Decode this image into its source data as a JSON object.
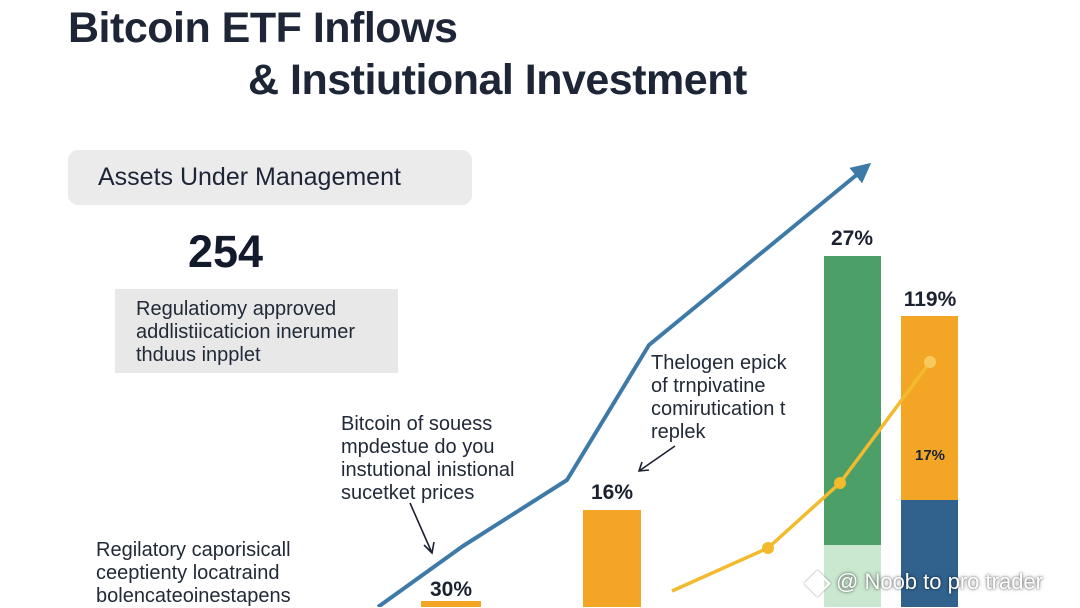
{
  "title_line1": "Bitcoin ETF Inflows",
  "title_line2": "& Instiutional Investment",
  "aum": {
    "label": "Assets Under Management",
    "value": "254"
  },
  "notes": {
    "regulatory_box": "Regulatiomy approved\naddlistiicaticion inerumer\nthduus inpplet",
    "bitcoin_note": "Bitcoin of souess\nmpdestue do you\ninstutional inistional\nsucetket prices",
    "trend_note": "Thelogen epick\nof trnpivatine\ncomirutication t\nreplek",
    "bottom_note": "Regilatory caporisicall\nceeptienty locatraind\nbolencateoinestapens"
  },
  "colors": {
    "trend_line": "#3d7aa8",
    "orange_bar": "#f3a626",
    "green_bar": "#4d9f68",
    "light_green": "#c9e8cf",
    "blue_bar": "#31628e",
    "overlay_line": "#f2ba2c"
  },
  "chart_data": {
    "type": "bar",
    "bars": [
      {
        "label": "30%",
        "value": 30,
        "color": "#f3a626"
      },
      {
        "label": "16%",
        "value": 16,
        "color": "#f3a626"
      },
      {
        "label": "27%",
        "value": 27,
        "segments": [
          {
            "value": 22,
            "color": "#4d9f68"
          },
          {
            "value": 5,
            "color": "#c9e8cf"
          }
        ]
      },
      {
        "label": "119%",
        "value": 119,
        "inner_label": "17%",
        "segments": [
          {
            "value": 9,
            "color": "#f3a626"
          },
          {
            "value": 10,
            "color": "#31628e"
          }
        ]
      }
    ],
    "trend_line": {
      "type": "line",
      "points": [
        1,
        2,
        3,
        4,
        5,
        6
      ],
      "arrow": true,
      "color": "#3d7aa8"
    },
    "overlay_line": {
      "type": "line",
      "points": [
        0,
        2,
        4,
        7,
        10
      ],
      "color": "#f2ba2c"
    }
  },
  "watermark": "@ Noob to pro trader"
}
